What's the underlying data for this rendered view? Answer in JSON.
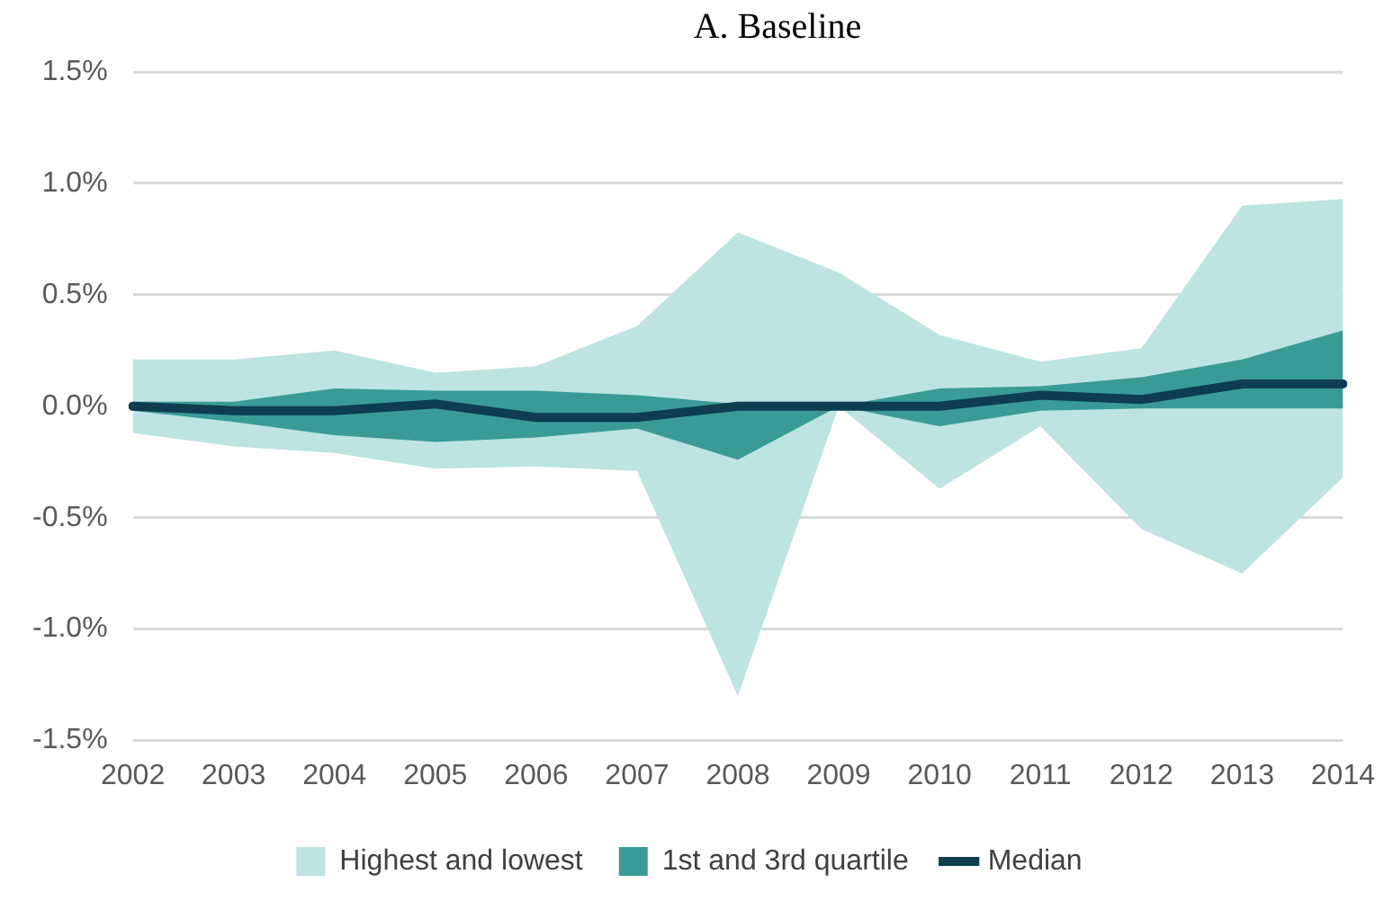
{
  "chart_data": {
    "type": "line",
    "title": "A. Baseline",
    "categories": [
      "2002",
      "2003",
      "2004",
      "2005",
      "2006",
      "2007",
      "2008",
      "2009",
      "2010",
      "2011",
      "2012",
      "2013",
      "2014"
    ],
    "series": [
      {
        "name": "Highest and lowest",
        "type": "area",
        "color": "#bde3e3",
        "values": [
          null,
          null,
          null,
          null,
          null,
          null,
          null,
          null,
          null,
          null,
          null,
          null,
          null
        ],
        "upper": [
          0.21,
          0.21,
          0.25,
          0.15,
          0.18,
          0.36,
          0.78,
          0.6,
          0.32,
          0.2,
          0.26,
          0.9,
          0.93
        ],
        "lower": [
          -0.12,
          -0.18,
          -0.21,
          -0.28,
          -0.27,
          -0.29,
          -1.3,
          0,
          -0.37,
          -0.09,
          -0.55,
          -0.75,
          -0.32
        ]
      },
      {
        "name": "1st and 3rd quartile",
        "type": "area",
        "color": "#3a9b96",
        "values": [
          null,
          null,
          null,
          null,
          null,
          null,
          null,
          null,
          null,
          null,
          null,
          null,
          null
        ],
        "upper": [
          0.02,
          0.02,
          0.08,
          0.07,
          0.07,
          0.05,
          0.01,
          0,
          0.08,
          0.09,
          0.13,
          0.21,
          0.34
        ],
        "lower": [
          -0.02,
          -0.07,
          -0.13,
          -0.16,
          -0.14,
          -0.1,
          -0.24,
          0,
          -0.09,
          -0.02,
          -0.01,
          -0.01,
          -0.01
        ]
      },
      {
        "name": "Median",
        "type": "line",
        "color": "#0d3d4e",
        "values": [
          0,
          -0.02,
          -0.02,
          0.01,
          -0.05,
          -0.05,
          0,
          0,
          0,
          0.05,
          0.03,
          0.1,
          0.1
        ]
      }
    ],
    "ylim": [
      -1.5,
      1.5
    ],
    "yticks": [
      {
        "value": -1.5,
        "label": "-1.5%"
      },
      {
        "value": -1.0,
        "label": "-1.0%"
      },
      {
        "value": -0.5,
        "label": "-0.5%"
      },
      {
        "value": 0,
        "label": "0.0%"
      },
      {
        "value": 0.5,
        "label": "0.5%"
      },
      {
        "value": 1.0,
        "label": "1.0%"
      },
      {
        "value": 1.5,
        "label": "1.5%"
      }
    ],
    "grid": "y",
    "legend": "bottom",
    "marker": "none",
    "line_style": "solid"
  }
}
